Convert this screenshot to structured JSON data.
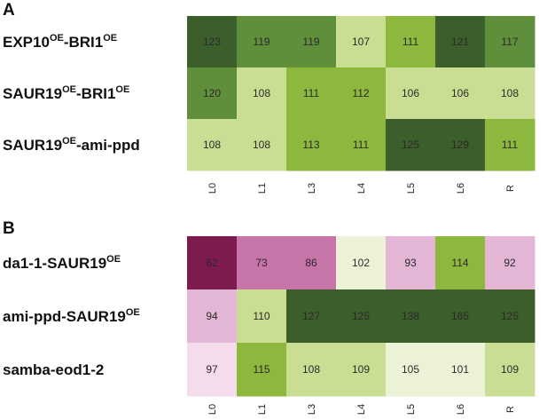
{
  "chart_data": [
    {
      "type": "heatmap",
      "panel": "A",
      "columns": [
        "L0",
        "L1",
        "L3",
        "L4",
        "L5",
        "L6",
        "R"
      ],
      "rows": [
        {
          "label": "EXP10",
          "sup1": "OE",
          "label2": "-BRI1",
          "sup2": "OE",
          "values": [
            123,
            119,
            119,
            107,
            111,
            121,
            117
          ]
        },
        {
          "label": "SAUR19",
          "sup1": "OE",
          "label2": "-BRI1",
          "sup2": "OE",
          "values": [
            120,
            108,
            111,
            112,
            106,
            106,
            108
          ]
        },
        {
          "label": "SAUR19",
          "sup1": "OE",
          "label2": "-ami-ppd",
          "sup2": "",
          "values": [
            108,
            108,
            113,
            111,
            125,
            129,
            111
          ]
        }
      ]
    },
    {
      "type": "heatmap",
      "panel": "B",
      "columns": [
        "L0",
        "L1",
        "L3",
        "L4",
        "L5",
        "L6",
        "R"
      ],
      "rows": [
        {
          "label": "da1-1-SAUR19",
          "sup1": "OE",
          "label2": "",
          "sup2": "",
          "values": [
            62,
            73,
            86,
            102,
            93,
            114,
            92
          ]
        },
        {
          "label": "ami-ppd-SAUR19",
          "sup1": "OE",
          "label2": "",
          "sup2": "",
          "values": [
            94,
            110,
            127,
            125,
            138,
            165,
            125
          ]
        },
        {
          "label": "samba-eod1-2",
          "sup1": "",
          "label2": "",
          "sup2": "",
          "values": [
            97,
            115,
            108,
            109,
            105,
            101,
            109
          ]
        }
      ]
    }
  ],
  "color_scale": {
    "dark_magenta": "#7d1a4e",
    "magenta": "#c774a8",
    "pink": "#e3b6d6",
    "pale_pink": "#f4dced",
    "pale_green": "#ecf2d8",
    "light_green": "#c9de92",
    "green": "#8eb73e",
    "mid_green": "#5f8f3a",
    "dark_green": "#3b5e2b"
  }
}
